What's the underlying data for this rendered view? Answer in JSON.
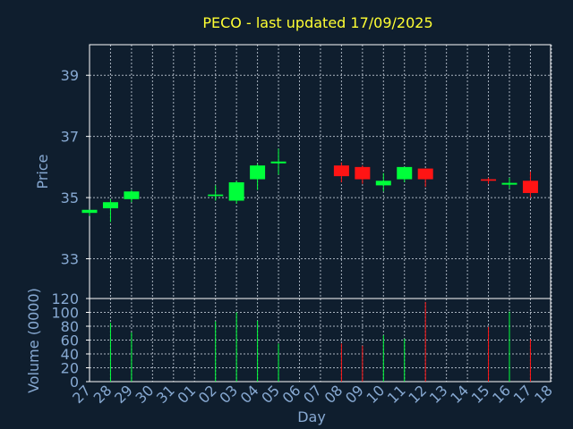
{
  "chart_data": {
    "type": "candlestick",
    "title": "PECO - last updated 17/09/2025",
    "xlabel": "Day",
    "price_panel": {
      "ylabel": "Price",
      "ylim": [
        31.7,
        40.0
      ],
      "yticks": [
        33,
        35,
        37,
        39
      ]
    },
    "volume_panel": {
      "ylabel": "Volume (0000)",
      "ylim": [
        0,
        120
      ],
      "yticks": [
        0,
        20,
        40,
        60,
        80,
        100,
        120
      ]
    },
    "categories": [
      "27",
      "28",
      "29",
      "30",
      "31",
      "01",
      "02",
      "03",
      "04",
      "05",
      "06",
      "07",
      "08",
      "09",
      "10",
      "11",
      "12",
      "13",
      "14",
      "15",
      "16",
      "17",
      "18"
    ],
    "candles": [
      {
        "x": "27",
        "open": 34.5,
        "high": 34.6,
        "low": 34.4,
        "close": 34.6,
        "volume": 0
      },
      {
        "x": "28",
        "open": 34.65,
        "high": 34.95,
        "low": 34.2,
        "close": 34.85,
        "volume": 85
      },
      {
        "x": "29",
        "open": 34.95,
        "high": 35.25,
        "low": 34.85,
        "close": 35.2,
        "volume": 71
      },
      {
        "x": "02",
        "open": 35.05,
        "high": 35.4,
        "low": 34.9,
        "close": 35.1,
        "volume": 87
      },
      {
        "x": "03",
        "open": 34.9,
        "high": 35.55,
        "low": 34.8,
        "close": 35.5,
        "volume": 100
      },
      {
        "x": "04",
        "open": 35.6,
        "high": 36.1,
        "low": 35.25,
        "close": 36.05,
        "volume": 88
      },
      {
        "x": "05",
        "open": 36.15,
        "high": 36.6,
        "low": 35.75,
        "close": 36.15,
        "volume": 55
      },
      {
        "x": "08",
        "open": 36.05,
        "high": 36.15,
        "low": 35.5,
        "close": 35.7,
        "volume": 55
      },
      {
        "x": "09",
        "open": 36.0,
        "high": 36.05,
        "low": 35.45,
        "close": 35.6,
        "volume": 52
      },
      {
        "x": "10",
        "open": 35.4,
        "high": 35.8,
        "low": 35.2,
        "close": 35.55,
        "volume": 67
      },
      {
        "x": "11",
        "open": 35.6,
        "high": 36.0,
        "low": 35.5,
        "close": 36.0,
        "volume": 62
      },
      {
        "x": "12",
        "open": 35.95,
        "high": 35.95,
        "low": 35.35,
        "close": 35.6,
        "volume": 115
      },
      {
        "x": "15",
        "open": 35.6,
        "high": 35.65,
        "low": 35.45,
        "close": 35.55,
        "volume": 79
      },
      {
        "x": "16",
        "open": 35.45,
        "high": 35.65,
        "low": 35.3,
        "close": 35.45,
        "volume": 101
      },
      {
        "x": "17",
        "open": 35.55,
        "high": 35.85,
        "low": 35.0,
        "close": 35.15,
        "volume": 61
      }
    ],
    "colors": {
      "up": "#00ff3a",
      "down": "#ff1414",
      "background": "#0f1e2e",
      "grid": "#cfd8e3",
      "title": "#ffff33",
      "axis_text": "#87a9d2"
    },
    "grid": true
  }
}
